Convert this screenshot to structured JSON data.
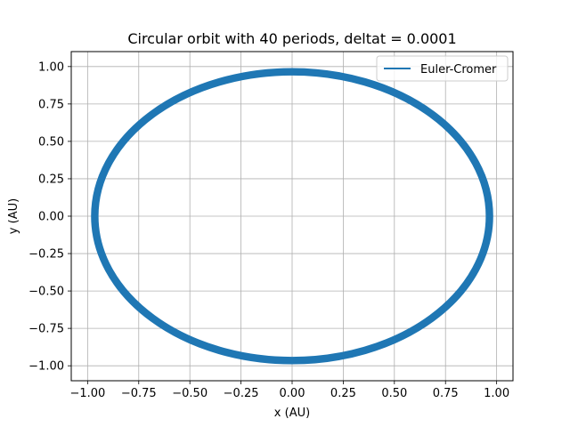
{
  "chart_data": {
    "type": "line",
    "title": "Circular orbit with 40 periods, deltat = 0.0001",
    "xlabel": "x (AU)",
    "ylabel": "y (AU)",
    "xlim": [
      -1.08,
      1.08
    ],
    "ylim": [
      -1.1,
      1.1
    ],
    "xticks": [
      -1.0,
      -0.75,
      -0.5,
      -0.25,
      0.0,
      0.25,
      0.5,
      0.75,
      1.0
    ],
    "xtick_labels": [
      "−1.00",
      "−0.75",
      "−0.50",
      "−0.25",
      "0.00",
      "0.25",
      "0.50",
      "0.75",
      "1.00"
    ],
    "yticks": [
      -1.0,
      -0.75,
      -0.5,
      -0.25,
      0.0,
      0.25,
      0.5,
      0.75,
      1.0
    ],
    "ytick_labels": [
      "−1.00",
      "−0.75",
      "−0.50",
      "−0.25",
      "0.00",
      "0.25",
      "0.50",
      "0.75",
      "1.00"
    ],
    "grid": true,
    "legend_position": "top-right",
    "series": [
      {
        "name": "Euler-Cromer",
        "color": "#1f77b4",
        "shape": "circle",
        "center": [
          0.0,
          0.0
        ],
        "radius_min": 0.94,
        "radius_max": 0.99,
        "periods": 40
      }
    ]
  }
}
